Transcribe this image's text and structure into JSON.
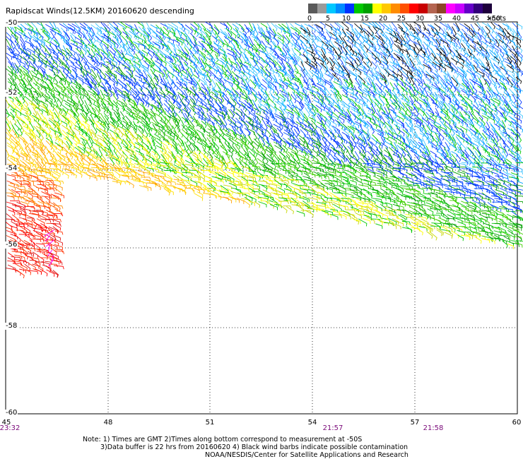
{
  "title": "Rapidscat Winds(12.5KM) 20160620 descending",
  "legend": {
    "tick_labels": [
      "0",
      "5",
      "10",
      "15",
      "20",
      "25",
      "30",
      "35",
      "40",
      "45",
      ">50"
    ],
    "unit": "knots",
    "colors": [
      "#5a5a5a",
      "#9a9a9a",
      "#00c8ff",
      "#008cff",
      "#0032ff",
      "#00c800",
      "#00a000",
      "#ffff00",
      "#ffc800",
      "#ff8c00",
      "#ff5000",
      "#ff0000",
      "#c80000",
      "#b46450",
      "#8c4628",
      "#ff00ff",
      "#c800ff",
      "#6400c8",
      "#32007a",
      "#1e003c"
    ]
  },
  "axes": {
    "lat_labels": [
      "-50",
      "-52",
      "-54",
      "-56",
      "-58",
      "-60"
    ],
    "lon_labels": [
      "45",
      "48",
      "51",
      "54",
      "57",
      "60"
    ]
  },
  "time_labels": [
    "23:32",
    "21:57",
    "21:58"
  ],
  "notes": {
    "line1": "Note: 1) Times are GMT 2)Times along bottom correspond to measurement at -50S",
    "line2": "3)Data buffer is 22 hrs from 20160620 4) Black wind barbs indicate possible contamination",
    "line3": "NOAA/NESDIS/Center for Satellite Applications and Research"
  }
}
